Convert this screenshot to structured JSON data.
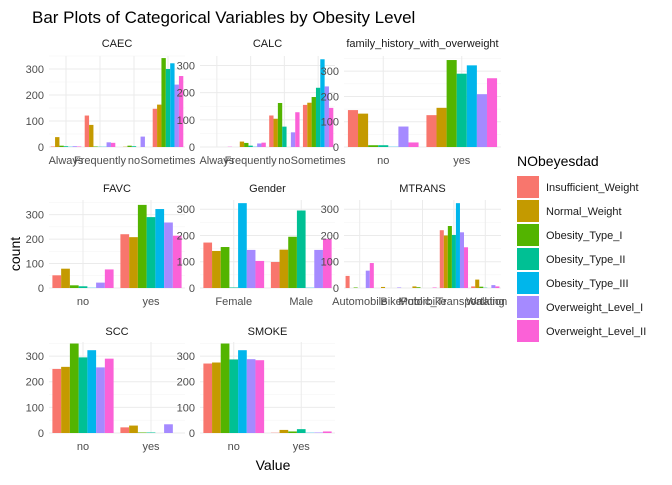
{
  "chart_data": {
    "type": "bar",
    "title": "Bar Plots of Categorical Variables by Obesity Level",
    "xlabel": "Value",
    "ylabel": "count",
    "legend": {
      "title": "NObeyesdad",
      "position": "right",
      "entries": [
        {
          "name": "Insufficient_Weight",
          "color": "#F8766D"
        },
        {
          "name": "Normal_Weight",
          "color": "#C49A00"
        },
        {
          "name": "Obesity_Type_I",
          "color": "#53B400"
        },
        {
          "name": "Obesity_Type_II",
          "color": "#00C094"
        },
        {
          "name": "Obesity_Type_III",
          "color": "#00B6EB"
        },
        {
          "name": "Overweight_Level_I",
          "color": "#A58AFF"
        },
        {
          "name": "Overweight_Level_II",
          "color": "#FB61D7"
        }
      ]
    },
    "facets": [
      {
        "name": "CAEC",
        "ylim": [
          0,
          350
        ],
        "yticks": [
          0,
          100,
          200,
          300
        ],
        "categories": [
          "Always",
          "Frequently",
          "no",
          "Sometimes"
        ],
        "tick_labels": [
          "Always",
          "Frequently",
          "no",
          "Sometimes"
        ],
        "values": [
          [
            2,
            38,
            5,
            3,
            1,
            3,
            2
          ],
          [
            121,
            85,
            2,
            1,
            1,
            18,
            16
          ],
          [
            0,
            1,
            5,
            3,
            0,
            40,
            0
          ],
          [
            147,
            163,
            342,
            300,
            322,
            240,
            273
          ]
        ]
      },
      {
        "name": "CALC",
        "ylim": [
          0,
          335
        ],
        "yticks": [
          0,
          100,
          200,
          300
        ],
        "categories": [
          "Always",
          "Frequently",
          "no",
          "Sometimes"
        ],
        "tick_labels": [
          "Always",
          "Frequently",
          "no",
          "Sometimes"
        ],
        "values": [
          [
            0,
            0,
            0,
            0,
            0,
            0,
            1
          ],
          [
            0,
            20,
            15,
            5,
            1,
            13,
            16
          ],
          [
            116,
            104,
            162,
            75,
            0,
            54,
            128
          ],
          [
            155,
            163,
            184,
            218,
            323,
            223,
            144
          ]
        ]
      },
      {
        "name": "family_history_with_overweight",
        "ylim": [
          0,
          360
        ],
        "yticks": [
          0,
          100,
          200,
          300
        ],
        "categories": [
          "no",
          "yes"
        ],
        "tick_labels": [
          "no",
          "yes"
        ],
        "values": [
          [
            146,
            132,
            7,
            7,
            1,
            81,
            18
          ],
          [
            126,
            155,
            344,
            290,
            323,
            209,
            272
          ]
        ]
      },
      {
        "name": "FAVC",
        "ylim": [
          0,
          360
        ],
        "yticks": [
          0,
          100,
          200,
          300
        ],
        "categories": [
          "no",
          "yes"
        ],
        "tick_labels": [
          "no",
          "yes"
        ],
        "values": [
          [
            52,
            79,
            11,
            7,
            1,
            22,
            76
          ],
          [
            220,
            208,
            340,
            290,
            323,
            268,
            214
          ]
        ]
      },
      {
        "name": "Gender",
        "ylim": [
          0,
          335
        ],
        "yticks": [
          0,
          100,
          200,
          300
        ],
        "categories": [
          "Female",
          "Male"
        ],
        "tick_labels": [
          "Female",
          "Male"
        ],
        "values": [
          [
            173,
            141,
            156,
            2,
            323,
            145,
            103
          ],
          [
            99,
            146,
            195,
            295,
            1,
            145,
            187
          ]
        ]
      },
      {
        "name": "MTRANS",
        "ylim": [
          0,
          335
        ],
        "yticks": [
          0,
          100,
          200,
          300
        ],
        "categories": [
          "Automobile",
          "Bike",
          "Motorbike",
          "Public_Transportation",
          "Walking"
        ],
        "tick_labels": [
          "Automobile",
          "Bike",
          "Motorbike",
          "Public_Transportation",
          "Walking"
        ],
        "values": [
          [
            46,
            0,
            2,
            0,
            0,
            66,
            95
          ],
          [
            0,
            4,
            0,
            0,
            0,
            2,
            0
          ],
          [
            0,
            6,
            3,
            0,
            0,
            0,
            2
          ],
          [
            220,
            200,
            236,
            202,
            323,
            212,
            155
          ],
          [
            6,
            32,
            5,
            1,
            0,
            11,
            6
          ]
        ]
      },
      {
        "name": "SCC",
        "ylim": [
          0,
          355
        ],
        "yticks": [
          0,
          100,
          200,
          300
        ],
        "categories": [
          "no",
          "yes"
        ],
        "tick_labels": [
          "no",
          "yes"
        ],
        "values": [
          [
            250,
            258,
            349,
            295,
            323,
            256,
            290
          ],
          [
            22,
            29,
            2,
            2,
            0,
            34,
            0
          ]
        ]
      },
      {
        "name": "SMOKE",
        "ylim": [
          0,
          355
        ],
        "yticks": [
          0,
          100,
          200,
          300
        ],
        "categories": [
          "no",
          "yes"
        ],
        "tick_labels": [
          "no",
          "yes"
        ],
        "values": [
          [
            271,
            275,
            349,
            287,
            323,
            288,
            284
          ],
          [
            1,
            12,
            6,
            15,
            1,
            2,
            6
          ]
        ]
      }
    ]
  }
}
